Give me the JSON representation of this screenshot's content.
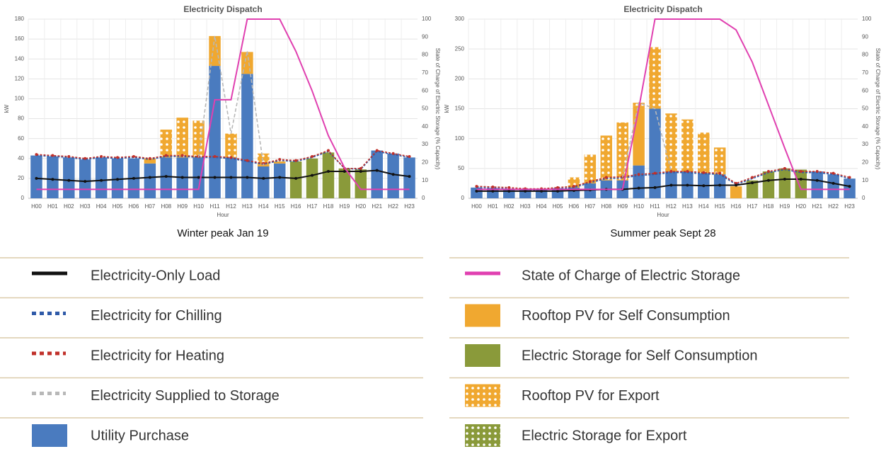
{
  "chart_data": [
    {
      "type": "bar",
      "title": "Electricity Dispatch",
      "caption": "Winter peak Jan 19",
      "ylabel": "kW",
      "xlabel": "Hour",
      "y2label": "State of Charge of Electric Storage (% Capacity)",
      "categories": [
        "H00",
        "H01",
        "H02",
        "H03",
        "H04",
        "H05",
        "H06",
        "H07",
        "H08",
        "H09",
        "H10",
        "H11",
        "H12",
        "H13",
        "H14",
        "H15",
        "H16",
        "H17",
        "H18",
        "H19",
        "H20",
        "H21",
        "H22",
        "H23"
      ],
      "ylim": [
        0,
        180
      ],
      "yticks": [
        0,
        20,
        40,
        60,
        80,
        100,
        120,
        140,
        160,
        180
      ],
      "y2lim": [
        0,
        100
      ],
      "y2ticks": [
        0,
        10,
        20,
        30,
        40,
        50,
        60,
        70,
        80,
        90,
        100
      ],
      "grid": true,
      "series": [
        {
          "kind": "bar",
          "color": "#4a7bbf",
          "values": [
            43,
            42,
            41,
            39,
            41,
            40,
            40,
            35,
            41,
            41,
            41,
            133,
            41,
            125,
            32,
            35,
            0,
            0,
            0,
            0,
            0,
            48,
            45,
            41
          ]
        },
        {
          "kind": "bar",
          "color": "#f0a830",
          "values": [
            0,
            0,
            0,
            0,
            0,
            0,
            0,
            5,
            0,
            0,
            0,
            30,
            0,
            22,
            2,
            2,
            0,
            0,
            0,
            0,
            0,
            0,
            0,
            0
          ]
        },
        {
          "kind": "bar",
          "color": "#8a9a3a",
          "values": [
            0,
            0,
            0,
            0,
            0,
            0,
            0,
            0,
            0,
            0,
            0,
            0,
            0,
            0,
            0,
            0,
            37,
            40,
            46,
            30,
            29,
            0,
            0,
            0
          ]
        },
        {
          "kind": "bar",
          "color": "#f0a830",
          "pattern": true,
          "values": [
            0,
            0,
            0,
            0,
            0,
            0,
            0,
            0,
            28,
            40,
            37,
            0,
            24,
            0,
            11,
            0,
            0,
            0,
            0,
            0,
            0,
            0,
            0,
            0
          ]
        },
        {
          "kind": "bar",
          "color": "#8a9a3a",
          "pattern": true,
          "values": [
            0,
            0,
            0,
            0,
            0,
            0,
            0,
            0,
            0,
            0,
            0,
            0,
            0,
            0,
            0,
            0,
            0,
            0,
            0,
            0,
            0,
            0,
            0,
            0
          ]
        },
        {
          "kind": "line",
          "style": "dotted",
          "color": "#2f5aa8",
          "values": [
            43,
            42,
            41,
            39,
            41,
            40,
            41,
            39,
            42,
            42,
            41,
            41,
            40,
            37,
            34,
            38,
            37,
            41,
            47,
            30,
            29,
            47,
            44,
            41
          ]
        },
        {
          "kind": "line",
          "style": "dotted",
          "color": "#c0302a",
          "markers": true,
          "values": [
            44,
            43,
            42,
            40,
            42,
            41,
            42,
            40,
            43,
            43,
            42,
            42,
            41,
            38,
            35,
            39,
            38,
            42,
            48,
            30,
            30,
            48,
            45,
            42
          ]
        },
        {
          "kind": "line",
          "style": "dashed",
          "color": "#b8b8b8",
          "values": [
            null,
            null,
            null,
            null,
            null,
            null,
            null,
            null,
            null,
            null,
            41,
            163,
            65,
            148,
            33,
            null,
            null,
            null,
            null,
            null,
            null,
            null,
            null,
            null
          ]
        },
        {
          "kind": "line",
          "style": "solid",
          "color": "#111111",
          "markers": true,
          "values": [
            20,
            19,
            18,
            17,
            18,
            19,
            20,
            21,
            22,
            21,
            21,
            21,
            21,
            21,
            20,
            21,
            20,
            23,
            27,
            27,
            27,
            28,
            24,
            22
          ]
        },
        {
          "kind": "line",
          "style": "solid",
          "color": "#e040b0",
          "axis": "y2",
          "values": [
            5,
            5,
            5,
            5,
            5,
            5,
            5,
            5,
            5,
            5,
            5,
            55,
            55,
            100,
            100,
            100,
            82,
            60,
            35,
            17,
            5,
            5,
            5,
            5
          ]
        }
      ]
    },
    {
      "type": "bar",
      "title": "Electricity Dispatch",
      "caption": "Summer peak Sept 28",
      "ylabel": "kW",
      "xlabel": "Hour",
      "y2label": "State of Charge of Electric Storage (% Capacity)",
      "categories": [
        "H00",
        "H01",
        "H02",
        "H03",
        "H04",
        "H05",
        "H06",
        "H07",
        "H08",
        "H09",
        "H10",
        "H11",
        "H12",
        "H13",
        "H14",
        "H15",
        "H16",
        "H17",
        "H18",
        "H19",
        "H20",
        "H21",
        "H22",
        "H23"
      ],
      "ylim": [
        0,
        300
      ],
      "yticks": [
        0,
        50,
        100,
        150,
        200,
        250,
        300
      ],
      "y2lim": [
        0,
        100
      ],
      "y2ticks": [
        0,
        10,
        20,
        30,
        40,
        50,
        60,
        70,
        80,
        90,
        100
      ],
      "grid": true,
      "series": [
        {
          "kind": "bar",
          "color": "#4a7bbf",
          "values": [
            18,
            17,
            16,
            15,
            16,
            17,
            18,
            25,
            30,
            30,
            55,
            150,
            45,
            45,
            42,
            40,
            0,
            0,
            0,
            0,
            0,
            45,
            40,
            33
          ]
        },
        {
          "kind": "bar",
          "color": "#f0a830",
          "values": [
            0,
            0,
            0,
            0,
            0,
            0,
            0,
            3,
            0,
            0,
            100,
            3,
            0,
            0,
            0,
            0,
            20,
            0,
            0,
            0,
            0,
            0,
            0,
            0
          ]
        },
        {
          "kind": "bar",
          "color": "#8a9a3a",
          "values": [
            0,
            0,
            0,
            0,
            0,
            0,
            0,
            0,
            0,
            0,
            0,
            0,
            0,
            0,
            0,
            0,
            0,
            30,
            45,
            50,
            48,
            0,
            0,
            0
          ]
        },
        {
          "kind": "bar",
          "color": "#f0a830",
          "pattern": true,
          "values": [
            0,
            0,
            0,
            0,
            0,
            0,
            17,
            45,
            75,
            97,
            5,
            100,
            97,
            87,
            68,
            45,
            0,
            0,
            0,
            0,
            0,
            0,
            0,
            0
          ]
        },
        {
          "kind": "bar",
          "color": "#8a9a3a",
          "pattern": true,
          "values": [
            0,
            0,
            0,
            0,
            0,
            0,
            0,
            0,
            0,
            0,
            0,
            0,
            0,
            0,
            0,
            0,
            0,
            0,
            0,
            0,
            0,
            0,
            0,
            0
          ]
        },
        {
          "kind": "line",
          "style": "dotted",
          "color": "#2f5aa8",
          "values": [
            18,
            17,
            16,
            14,
            14,
            16,
            18,
            26,
            33,
            34,
            38,
            40,
            43,
            43,
            41,
            40,
            23,
            33,
            43,
            48,
            43,
            43,
            40,
            33
          ]
        },
        {
          "kind": "line",
          "style": "dotted",
          "color": "#c0302a",
          "markers": true,
          "values": [
            20,
            19,
            18,
            16,
            16,
            18,
            20,
            28,
            35,
            36,
            40,
            42,
            45,
            45,
            43,
            42,
            25,
            35,
            45,
            50,
            45,
            45,
            42,
            35
          ]
        },
        {
          "kind": "line",
          "style": "dashed",
          "color": "#b8b8b8",
          "values": [
            null,
            null,
            null,
            null,
            null,
            null,
            null,
            null,
            null,
            35,
            160,
            150,
            45,
            null,
            null,
            null,
            null,
            null,
            null,
            null,
            null,
            null,
            null,
            null
          ]
        },
        {
          "kind": "line",
          "style": "solid",
          "color": "#111111",
          "markers": true,
          "values": [
            12,
            12,
            12,
            12,
            12,
            12,
            13,
            14,
            15,
            15,
            17,
            18,
            22,
            22,
            21,
            22,
            22,
            26,
            30,
            32,
            32,
            30,
            25,
            20
          ]
        },
        {
          "kind": "line",
          "style": "solid",
          "color": "#e040b0",
          "axis": "y2",
          "values": [
            5,
            5,
            5,
            5,
            5,
            5,
            5,
            5,
            5,
            5,
            50,
            100,
            100,
            100,
            100,
            100,
            94,
            76,
            52,
            28,
            5,
            5,
            5,
            5
          ]
        }
      ]
    }
  ],
  "legend": [
    {
      "name": "Electricity-Only Load",
      "color": "#111111",
      "marker": "line"
    },
    {
      "name": "Electricity for Chilling",
      "color": "#2f5aa8",
      "marker": "dots"
    },
    {
      "name": "Electricity for Heating",
      "color": "#c0302a",
      "marker": "dots"
    },
    {
      "name": "Electricity Supplied to Storage",
      "color": "#b8b8b8",
      "marker": "dots"
    },
    {
      "name": "Utility Purchase",
      "color": "#4a7bbf",
      "marker": "box"
    },
    {
      "name": "State of Charge of Electric Storage",
      "color": "#e040b0",
      "marker": "line"
    },
    {
      "name": "Rooftop PV for Self Consumption",
      "color": "#f0a830",
      "marker": "box"
    },
    {
      "name": "Electric Storage for Self Consumption",
      "color": "#8a9a3a",
      "marker": "box"
    },
    {
      "name": "Rooftop PV for Export",
      "color": "#f0a830",
      "marker": "pattern"
    },
    {
      "name": "Electric Storage for Export",
      "color": "#8a9a3a",
      "marker": "pattern"
    }
  ]
}
